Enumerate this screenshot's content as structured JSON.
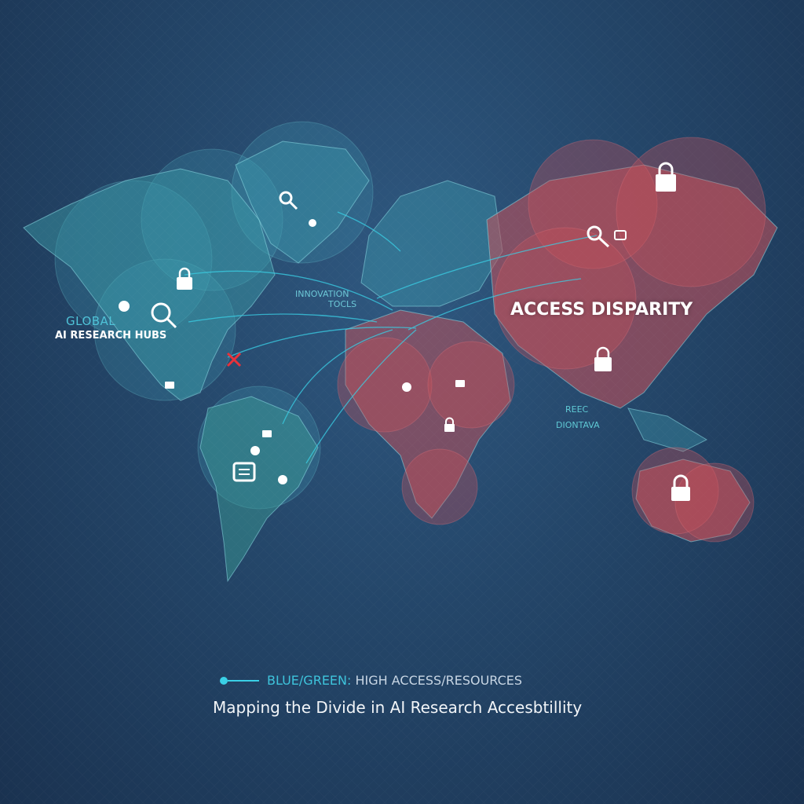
{
  "labels": {
    "global": "GLOBAL",
    "hubs": "AI RESEARCH HUBS",
    "innovation_line1": "INNOVATION",
    "innovation_line2": "TOCLS",
    "access_disparity": "ACCESS DISPARITY",
    "reec_line1": "REEC",
    "reec_line2": "DIONTAVA"
  },
  "legend": {
    "key": "BLUE/GREEN:",
    "value": "HIGH ACCESS/RESOURCES"
  },
  "title": "Mapping the Divide in AI Research Accesbtillity",
  "colors": {
    "high_access": "#3ad0e6",
    "low_access": "#c0505a",
    "background": "#244669",
    "barrier_marker": "#e8323a"
  },
  "icons": [
    "magnifier-icon",
    "lock-icon",
    "gear-icon",
    "document-icon",
    "x-mark-icon"
  ]
}
